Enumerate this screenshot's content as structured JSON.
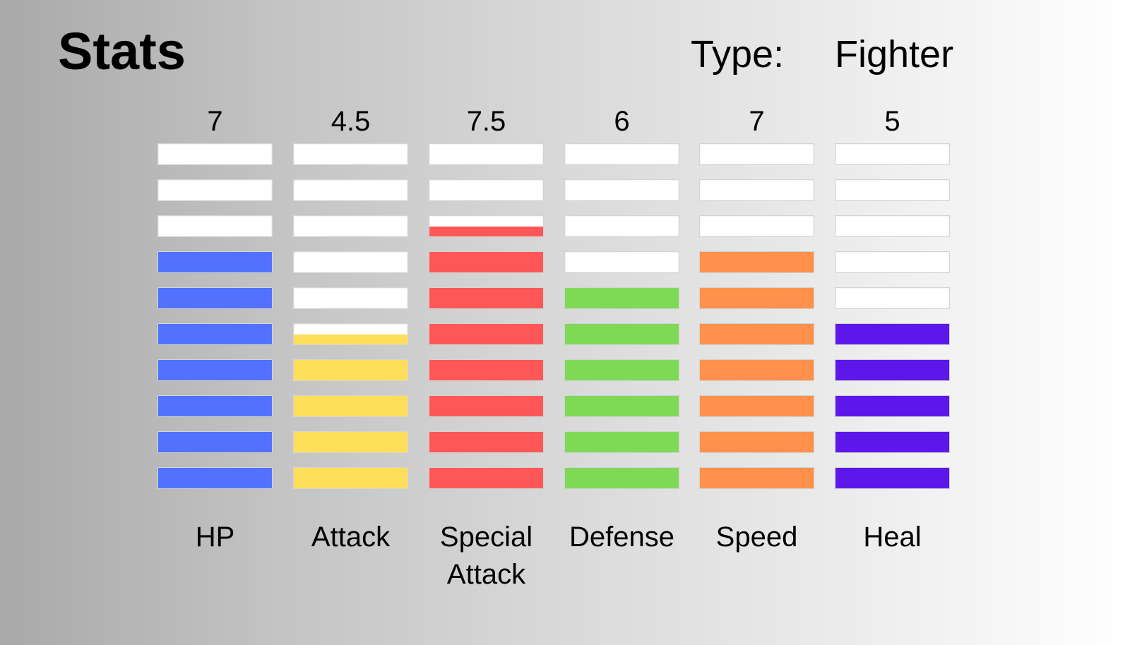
{
  "header": {
    "title": "Stats",
    "type_label": "Type:",
    "type_value": "Fighter"
  },
  "stats": [
    {
      "label": "HP",
      "value": "7",
      "level": 7,
      "color": "#5271ff"
    },
    {
      "label": "Attack",
      "value": "4.5",
      "level": 4.5,
      "color": "#ffde59"
    },
    {
      "label": "Special Attack",
      "value": "7.5",
      "level": 7.5,
      "color": "#ff5757"
    },
    {
      "label": "Defense",
      "value": "6",
      "level": 6,
      "color": "#7ed957"
    },
    {
      "label": "Speed",
      "value": "7",
      "level": 7,
      "color": "#ff914d"
    },
    {
      "label": "Heal",
      "value": "5",
      "level": 5,
      "color": "#5e17eb"
    }
  ],
  "max_level": 10
}
